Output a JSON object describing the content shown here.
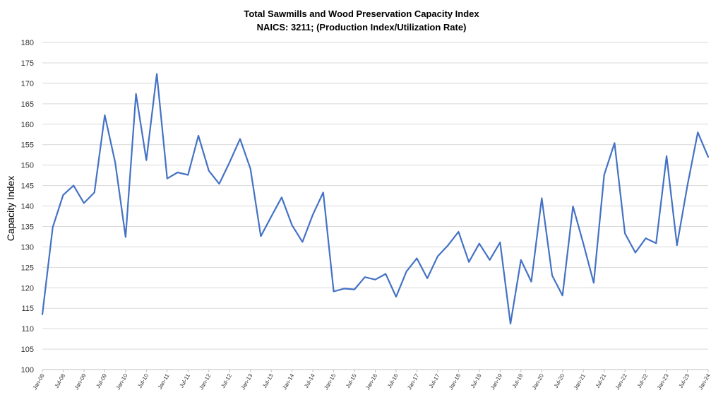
{
  "chart_data": {
    "type": "line",
    "title": "Total Sawmills and Wood Preservation Capacity Index",
    "subtitle": "NAICS: 3211; (Production Index/Utilization Rate)",
    "xlabel": "",
    "ylabel": "Capacity Index",
    "ylim": [
      100,
      180
    ],
    "yticks": [
      100,
      105,
      110,
      115,
      120,
      125,
      130,
      135,
      140,
      145,
      150,
      155,
      160,
      165,
      170,
      175,
      180
    ],
    "xtick_labels": [
      "Jan-08",
      "Jul-08",
      "Jan-09",
      "Jul-09",
      "Jan-10",
      "Jul-10",
      "Jan-11",
      "Jul-11",
      "Jan-12",
      "Jul-12",
      "Jan-13",
      "Jul-13",
      "Jan-14",
      "Jul-14",
      "Jan-15",
      "Jul-15",
      "Jan-16",
      "Jul-16",
      "Jan-17",
      "Jul-17",
      "Jan-18",
      "Jul-18",
      "Jan-19",
      "Jul-19",
      "Jan-20",
      "Jul-20",
      "Jan-21",
      "Jul-21",
      "Jan-22",
      "Jul-22",
      "Jan-23",
      "Jul-23",
      "Jan-24"
    ],
    "x": [
      "Jan-08",
      "Apr-08",
      "Jul-08",
      "Oct-08",
      "Jan-09",
      "Apr-09",
      "Jul-09",
      "Oct-09",
      "Jan-10",
      "Apr-10",
      "Jul-10",
      "Oct-10",
      "Jan-11",
      "Apr-11",
      "Jul-11",
      "Oct-11",
      "Jan-12",
      "Apr-12",
      "Jul-12",
      "Oct-12",
      "Jan-13",
      "Apr-13",
      "Jul-13",
      "Oct-13",
      "Jan-14",
      "Apr-14",
      "Jul-14",
      "Oct-14",
      "Jan-15",
      "Apr-15",
      "Jul-15",
      "Oct-15",
      "Jan-16",
      "Apr-16",
      "Jul-16",
      "Oct-16",
      "Jan-17",
      "Apr-17",
      "Jul-17",
      "Oct-17",
      "Jan-18",
      "Apr-18",
      "Jul-18",
      "Oct-18",
      "Jan-19",
      "Apr-19",
      "Jul-19",
      "Oct-19",
      "Jan-20",
      "Apr-20",
      "Jul-20",
      "Oct-20",
      "Jan-21",
      "Apr-21",
      "Jul-21",
      "Oct-21",
      "Jan-22",
      "Apr-22",
      "Jul-22",
      "Oct-22",
      "Jan-23",
      "Apr-23",
      "Jul-23",
      "Oct-23",
      "Jan-24"
    ],
    "series": [
      {
        "values": [
          113.5,
          134.8,
          142.7,
          145.0,
          140.7,
          143.3,
          162.2,
          150.7,
          132.4,
          167.4,
          151.2,
          172.3,
          146.7,
          148.2,
          147.6,
          157.2,
          148.6,
          145.4,
          150.7,
          156.4,
          149.1,
          132.6,
          137.4,
          142.1,
          135.3,
          131.2,
          137.9,
          143.3,
          119.1,
          119.8,
          119.6,
          122.6,
          122.0,
          123.4,
          117.8,
          124.0,
          127.2,
          122.3,
          127.7,
          130.4,
          133.7,
          126.3,
          130.8,
          126.8,
          131.1,
          111.2,
          126.8,
          121.5,
          141.9,
          123.0,
          118.1,
          139.9,
          130.8,
          121.2,
          147.6,
          155.4,
          133.3,
          128.6,
          132.1,
          130.9,
          152.2,
          130.4,
          144.9,
          158.0,
          152.0
        ],
        "color": "#4472C4"
      }
    ],
    "grid": true,
    "legend": "none"
  }
}
